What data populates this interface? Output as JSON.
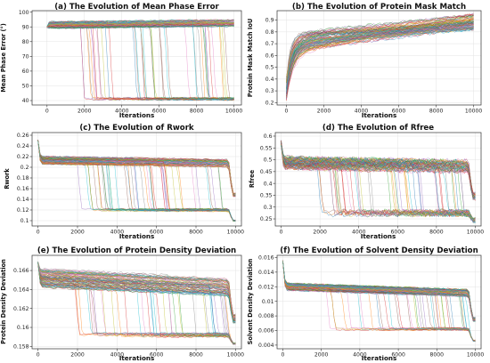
{
  "palette": [
    "#1f77b4",
    "#ff7f0e",
    "#2ca02c",
    "#d62728",
    "#9467bd",
    "#8c564b",
    "#e377c2",
    "#7f7f7f",
    "#bcbd22",
    "#17becf"
  ],
  "chart_data": [
    {
      "type": "line",
      "title": "(a) The Evolution of Mean Phase Error",
      "xlabel": "Iterations",
      "ylabel": "Mean Phase Error (°)",
      "xlim": [
        -800,
        10400
      ],
      "ylim": [
        37,
        101
      ],
      "xticks": [
        0,
        2000,
        4000,
        6000,
        8000,
        10000
      ],
      "yticks": [
        40,
        50,
        60,
        70,
        80,
        90,
        100
      ],
      "grid": true,
      "legend": "none",
      "series_count": 100,
      "x_range": [
        0,
        10000
      ],
      "curve_family": "plateau-then-drop",
      "start_value": 90,
      "plateau_value": 90.5,
      "plateau_drift": 3.5,
      "plateau_spread": [
        -1.5,
        3
      ],
      "converged_value": 41,
      "converged_spread": [
        -0.5,
        0.8
      ],
      "drop_range": [
        1500,
        9700
      ],
      "drop_fraction": 0.42,
      "final_drop_at": 9800,
      "final_drop_value": null,
      "noise": 0.6
    },
    {
      "type": "line",
      "title": "(b) The Evolution of Protein Mask Match",
      "xlabel": "Iterations",
      "ylabel": "Protein Mask Match IoU",
      "xlim": [
        -500,
        10400
      ],
      "ylim": [
        0.18,
        0.98
      ],
      "xticks": [
        0,
        2000,
        4000,
        6000,
        8000,
        10000
      ],
      "yticks": [
        0.2,
        0.3,
        0.4,
        0.5,
        0.6,
        0.7,
        0.8,
        0.9
      ],
      "grid": true,
      "legend": "none",
      "series_count": 100,
      "x_range": [
        0,
        10000
      ],
      "curve_family": "rise-and-saturate",
      "start_range": [
        0.22,
        0.42
      ],
      "early_level_range": [
        0.62,
        0.8
      ],
      "final_level_range": [
        0.82,
        0.95
      ],
      "rise_scale": 300,
      "noise": 0.012
    },
    {
      "type": "line",
      "title": "(c) The Evolution of Rwork",
      "xlabel": "Iterations",
      "ylabel": "Rwork",
      "xlim": [
        -300,
        10300
      ],
      "ylim": [
        0.09,
        0.265
      ],
      "xticks": [
        0,
        2000,
        4000,
        6000,
        8000,
        10000
      ],
      "yticks": [
        0.1,
        0.12,
        0.14,
        0.16,
        0.18,
        0.2,
        0.22,
        0.24,
        0.26
      ],
      "grid": true,
      "legend": "none",
      "series_count": 100,
      "x_range": [
        0,
        10000
      ],
      "curve_family": "plateau-then-drop",
      "start_value": 0.25,
      "plateau_value": 0.214,
      "plateau_drift": -0.014,
      "plateau_spread": [
        -0.008,
        0.006
      ],
      "converged_value": 0.12,
      "converged_spread": [
        -0.002,
        0.002
      ],
      "drop_range": [
        1800,
        9500
      ],
      "drop_fraction": 0.42,
      "final_drop_at": 9650,
      "final_drop_value": 0.1,
      "noise": 0.0015
    },
    {
      "type": "line",
      "title": "(d) The Evolution of Rfree",
      "xlabel": "Iterations",
      "ylabel": "Rfree",
      "xlim": [
        -300,
        10300
      ],
      "ylim": [
        0.22,
        0.615
      ],
      "xticks": [
        0,
        2000,
        4000,
        6000,
        8000,
        10000
      ],
      "yticks": [
        0.25,
        0.3,
        0.35,
        0.4,
        0.45,
        0.5,
        0.55,
        0.6
      ],
      "grid": true,
      "legend": "none",
      "series_count": 100,
      "x_range": [
        0,
        10000
      ],
      "curve_family": "plateau-then-drop",
      "start_value": 0.57,
      "plateau_value": 0.49,
      "plateau_drift": -0.04,
      "plateau_spread": [
        -0.025,
        0.02
      ],
      "converged_value": 0.275,
      "converged_spread": [
        -0.006,
        0.006
      ],
      "drop_range": [
        1800,
        9500
      ],
      "drop_fraction": 0.42,
      "final_drop_at": 9650,
      "final_drop_value": 0.245,
      "noise": 0.012
    },
    {
      "type": "line",
      "title": "(e) The Evolution of Protein Density Deviation",
      "xlabel": "Iterations",
      "ylabel": "Protein Density Deviation",
      "xlim": [
        -300,
        10300
      ],
      "ylim": [
        0.15775,
        0.1676
      ],
      "xticks": [
        0,
        2000,
        4000,
        6000,
        8000,
        10000
      ],
      "yticks": [
        0.158,
        0.16,
        0.162,
        0.164,
        0.166
      ],
      "grid": true,
      "legend": "none",
      "series_count": 100,
      "x_range": [
        0,
        10000
      ],
      "curve_family": "plateau-then-drop",
      "start_value": 0.1668,
      "plateau_value": 0.1654,
      "plateau_drift": -0.0025,
      "plateau_spread": [
        -0.0012,
        0.0008
      ],
      "converged_value": 0.1592,
      "converged_spread": [
        -0.0002,
        0.0002
      ],
      "drop_range": [
        1800,
        9500
      ],
      "drop_fraction": 0.42,
      "final_drop_at": 9650,
      "final_drop_value": 0.1583,
      "noise": 0.00012
    },
    {
      "type": "line",
      "title": "(f) The Evolution of Solvent Density Deviation",
      "xlabel": "Iterations",
      "ylabel": "Solvent Density Deviation",
      "xlim": [
        -300,
        10300
      ],
      "ylim": [
        0.0035,
        0.0163
      ],
      "xticks": [
        0,
        2000,
        4000,
        6000,
        8000,
        10000
      ],
      "yticks": [
        0.004,
        0.006,
        0.008,
        0.01,
        0.012,
        0.014,
        0.016
      ],
      "grid": true,
      "legend": "none",
      "series_count": 100,
      "x_range": [
        0,
        10000
      ],
      "curve_family": "plateau-then-drop",
      "start_value": 0.0155,
      "plateau_value": 0.0121,
      "plateau_drift": -0.0022,
      "plateau_spread": [
        -0.0006,
        0.0004
      ],
      "converged_value": 0.0062,
      "converged_spread": [
        -0.00015,
        0.00015
      ],
      "drop_range": [
        1800,
        9500
      ],
      "drop_fraction": 0.42,
      "final_drop_at": 9650,
      "final_drop_value": 0.0046,
      "noise": 0.00012
    }
  ]
}
